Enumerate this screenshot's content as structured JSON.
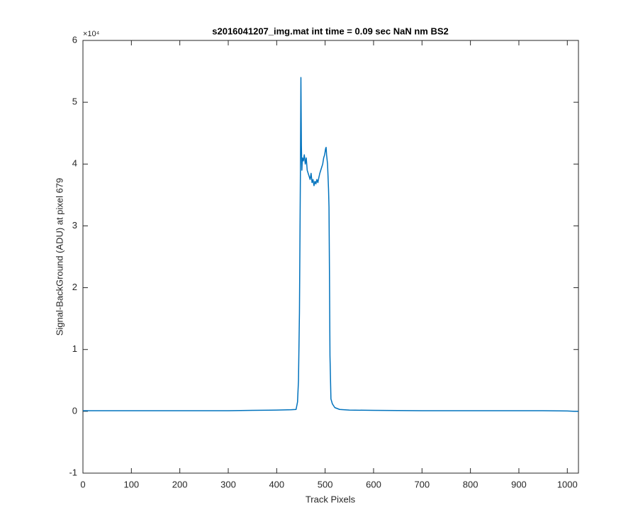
{
  "chart_data": {
    "type": "line",
    "title": "s2016041207_img.mat int time = 0.09 sec  NaN nm BS2",
    "x_label": "Track Pixels",
    "y_label": "Signal-BackGround (ADU) at pixel 679",
    "y_exponent_label": "×10⁴",
    "color": "#0072bd",
    "x": [
      0,
      25,
      50,
      100,
      150,
      200,
      250,
      300,
      350,
      400,
      430,
      440,
      443,
      445,
      447,
      449,
      450,
      451,
      452,
      453,
      455,
      457,
      459,
      461,
      463,
      465,
      467,
      469,
      471,
      473,
      475,
      477,
      479,
      481,
      483,
      485,
      487,
      489,
      491,
      493,
      495,
      497,
      499,
      501,
      502,
      503,
      505,
      507,
      508,
      509,
      510,
      512,
      515,
      520,
      530,
      550,
      600,
      650,
      700,
      750,
      800,
      850,
      900,
      950,
      1000,
      1015,
      1023
    ],
    "values": [
      0.01,
      0.01,
      0.01,
      0.01,
      0.01,
      0.01,
      0.01,
      0.01,
      0.015,
      0.02,
      0.025,
      0.03,
      0.15,
      0.5,
      1.6,
      3.9,
      5.4,
      4.3,
      3.9,
      4.1,
      4.05,
      4.15,
      4.0,
      4.1,
      3.9,
      3.85,
      3.8,
      3.75,
      3.85,
      3.7,
      3.75,
      3.65,
      3.72,
      3.68,
      3.75,
      3.7,
      3.78,
      3.85,
      3.9,
      3.95,
      4.0,
      4.1,
      4.15,
      4.25,
      4.27,
      4.15,
      4.0,
      3.6,
      3.3,
      2.2,
      0.9,
      0.2,
      0.12,
      0.06,
      0.03,
      0.02,
      0.015,
      0.012,
      0.01,
      0.01,
      0.01,
      0.01,
      0.01,
      0.01,
      0.005,
      0.0,
      0.0
    ],
    "xlim": [
      0,
      1023
    ],
    "ylim": [
      -1,
      6
    ],
    "xticks": [
      0,
      100,
      200,
      300,
      400,
      500,
      600,
      700,
      800,
      900,
      1000
    ],
    "yticks": [
      -1,
      0,
      1,
      2,
      3,
      4,
      5,
      6
    ],
    "grid": false
  }
}
